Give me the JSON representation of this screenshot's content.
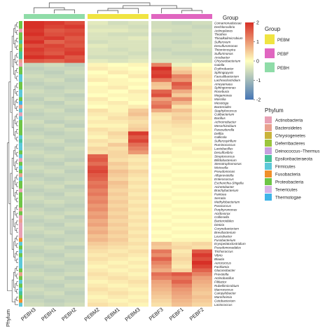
{
  "chart_data": {
    "type": "heatmap",
    "title": "",
    "columns": [
      "PEBH3",
      "PEBH1",
      "PEBH2",
      "PEBM2",
      "PEBM1",
      "PEBM3",
      "PEBF3",
      "PEBF1",
      "PEBF2"
    ],
    "column_groups": [
      "PEBH",
      "PEBH",
      "PEBH",
      "PEBM",
      "PEBM",
      "PEBM",
      "PEBF",
      "PEBF",
      "PEBF"
    ],
    "rows": [
      "Comamonadaceae",
      "Dechlorovibrio",
      "Actinoplanes",
      "Thiothrix",
      "Thioalkalimicrobium",
      "Sulfurovum",
      "Desulfuromonas",
      "Thiomicrospira",
      "Sulfurimonas",
      "Arcobacter",
      "Chryseobacterium",
      "Gaiella",
      "Erythrobacter",
      "Sphingopyxis",
      "Faecalibacterium",
      "Lachnoclostridium",
      "Ameyamaea",
      "Sphingomonas",
      "Roseburia",
      "Megamonas",
      "Massilia",
      "Mesotoga",
      "Bacteroides",
      "Staphylococcus",
      "Cutibacterium",
      "Bacillus",
      "Achromobacter",
      "Mesorhizobium",
      "Parasutterella",
      "Delftia",
      "Gallicola",
      "Sulfurospirillum",
      "Ruminococcus",
      "Lactobacillus",
      "Desulfovibrio",
      "Streptococcus",
      "Bifidobacterium",
      "Stenotrophomonas",
      "Weissella",
      "Pseudomonas",
      "Alloprevotella",
      "Enterococcus",
      "Escherichia-Shigella",
      "Acinetobacter",
      "Brachybacterium",
      "Pantoea",
      "Serratia",
      "Methylobacterium",
      "Paracoccus",
      "Porphyromonas",
      "Acidovorax",
      "Collinsella",
      "Bacteroidales",
      "Dietzia",
      "Corynebacterium",
      "Brevibacterium",
      "Leucobacter",
      "Fusobacterium",
      "Erysipelatoclostridium",
      "Pseudomonadales",
      "Trichococcus",
      "Vibrio",
      "Blautia",
      "Aerococcus",
      "Facklamia",
      "Gluconobacter",
      "Prevotella",
      "Actinobacillus",
      "Filifactor",
      "Rubellimicrobium",
      "Macrococcus",
      "Campylobacter",
      "Mannheimia",
      "Cetobacterium",
      "Lactococcus"
    ],
    "values": [
      [
        2.1,
        1.9,
        1.7,
        -0.3,
        -0.5,
        -0.4,
        -0.5,
        -0.6,
        -0.5
      ],
      [
        2.0,
        1.8,
        1.9,
        -0.4,
        -0.4,
        -0.5,
        -0.5,
        -0.5,
        -0.6
      ],
      [
        1.9,
        1.6,
        1.7,
        -0.3,
        -0.3,
        -0.4,
        -0.4,
        -0.5,
        -0.5
      ],
      [
        2.2,
        1.7,
        1.8,
        -0.4,
        -0.5,
        -0.5,
        -0.6,
        -0.6,
        -0.5
      ],
      [
        1.8,
        1.9,
        1.6,
        -0.4,
        -0.4,
        -0.3,
        -0.5,
        -0.5,
        -0.5
      ],
      [
        2.0,
        1.5,
        1.7,
        -0.5,
        -0.4,
        -0.4,
        -0.5,
        -0.6,
        -0.5
      ],
      [
        1.7,
        1.8,
        1.6,
        -0.3,
        -0.4,
        -0.4,
        -0.5,
        -0.5,
        -0.4
      ],
      [
        1.9,
        1.7,
        1.8,
        -0.4,
        -0.5,
        -0.4,
        -0.6,
        -0.5,
        -0.5
      ],
      [
        1.8,
        1.6,
        1.9,
        -0.4,
        -0.4,
        -0.5,
        -0.5,
        -0.6,
        -0.6
      ],
      [
        2.1,
        1.9,
        1.6,
        -0.5,
        -0.5,
        -0.4,
        -0.5,
        -0.5,
        -0.5
      ],
      [
        1.6,
        1.5,
        1.7,
        -0.3,
        -0.4,
        -0.3,
        -0.4,
        -0.4,
        -0.5
      ],
      [
        -0.6,
        -0.5,
        -0.7,
        0.1,
        0.0,
        0.1,
        1.2,
        -0.2,
        0.0
      ],
      [
        -0.7,
        -0.6,
        -0.6,
        0.2,
        0.1,
        0.0,
        2.1,
        0.4,
        0.1
      ],
      [
        -0.6,
        -0.7,
        -0.5,
        0.0,
        0.2,
        0.1,
        1.8,
        0.6,
        0.2
      ],
      [
        -0.5,
        -0.6,
        -0.6,
        0.1,
        0.0,
        0.2,
        1.9,
        1.2,
        0.3
      ],
      [
        -0.6,
        -0.5,
        -0.7,
        0.2,
        0.1,
        0.0,
        1.3,
        1.0,
        0.2
      ],
      [
        -0.7,
        -0.6,
        -0.6,
        0.0,
        0.1,
        0.1,
        0.6,
        1.6,
        0.1
      ],
      [
        -0.6,
        -0.7,
        -0.6,
        0.1,
        0.2,
        0.0,
        0.5,
        1.4,
        0.3
      ],
      [
        -0.5,
        -0.6,
        -0.5,
        0.1,
        0.0,
        0.2,
        1.5,
        0.8,
        0.2
      ],
      [
        -0.6,
        -0.6,
        -0.7,
        0.0,
        0.1,
        0.1,
        1.7,
        0.5,
        0.1
      ],
      [
        -0.7,
        -0.5,
        -0.6,
        0.2,
        0.0,
        0.1,
        0.9,
        1.1,
        0.2
      ],
      [
        -0.6,
        -0.7,
        -0.5,
        0.1,
        0.2,
        0.0,
        1.2,
        0.7,
        0.0
      ],
      [
        -0.5,
        -0.6,
        -0.6,
        0.0,
        0.1,
        0.2,
        1.4,
        0.3,
        0.1
      ],
      [
        -0.6,
        -0.5,
        -0.7,
        0.3,
        0.1,
        0.5,
        0.8,
        0.6,
        0.2
      ],
      [
        -0.7,
        -0.6,
        -0.6,
        0.2,
        0.2,
        0.6,
        0.3,
        0.4,
        0.1
      ],
      [
        -0.6,
        -0.6,
        -0.5,
        0.1,
        0.3,
        0.4,
        0.2,
        0.5,
        0.2
      ],
      [
        -0.5,
        -0.7,
        -0.6,
        0.2,
        0.2,
        0.3,
        0.3,
        0.4,
        0.0
      ],
      [
        -0.6,
        -0.5,
        -0.7,
        0.1,
        0.1,
        0.4,
        0.2,
        0.3,
        0.1
      ],
      [
        -0.7,
        -0.6,
        -0.5,
        0.3,
        0.2,
        0.5,
        0.2,
        0.2,
        0.1
      ],
      [
        -0.6,
        -0.7,
        -0.6,
        0.2,
        0.4,
        1.9,
        0.1,
        0.2,
        0.0
      ],
      [
        -0.5,
        -0.6,
        -0.6,
        0.1,
        0.3,
        1.6,
        0.2,
        0.1,
        0.1
      ],
      [
        -0.6,
        -0.5,
        -0.7,
        0.3,
        0.2,
        1.8,
        0.1,
        0.2,
        0.0
      ],
      [
        -0.7,
        -0.6,
        -0.6,
        0.2,
        0.5,
        1.4,
        0.0,
        0.1,
        0.1
      ],
      [
        -0.6,
        -0.7,
        -0.5,
        0.4,
        0.3,
        1.2,
        0.1,
        0.0,
        0.2
      ],
      [
        -0.5,
        -0.6,
        -0.6,
        0.3,
        0.4,
        1.0,
        0.2,
        0.1,
        0.0
      ],
      [
        -0.6,
        -0.5,
        -0.6,
        1.5,
        0.4,
        0.3,
        0.0,
        0.1,
        0.1
      ],
      [
        -0.7,
        -0.6,
        -0.7,
        1.6,
        0.3,
        0.2,
        0.1,
        0.0,
        0.0
      ],
      [
        -0.6,
        -0.7,
        -0.5,
        1.4,
        0.5,
        0.3,
        0.0,
        0.1,
        0.1
      ],
      [
        -0.5,
        -0.6,
        -0.6,
        1.7,
        0.4,
        0.2,
        0.1,
        0.0,
        0.0
      ],
      [
        -0.6,
        -0.5,
        -0.7,
        1.8,
        0.6,
        0.4,
        0.0,
        0.1,
        0.1
      ],
      [
        -0.7,
        -0.6,
        -0.6,
        1.6,
        0.5,
        0.3,
        0.1,
        0.0,
        0.0
      ],
      [
        -0.6,
        -0.7,
        -0.6,
        1.5,
        0.4,
        0.2,
        0.0,
        0.1,
        0.1
      ],
      [
        -0.5,
        -0.6,
        -0.5,
        1.3,
        0.6,
        0.3,
        0.1,
        0.0,
        0.0
      ],
      [
        -0.6,
        -0.5,
        -0.7,
        1.4,
        0.5,
        0.2,
        0.0,
        0.1,
        0.1
      ],
      [
        -0.7,
        -0.6,
        -0.6,
        1.2,
        0.4,
        0.3,
        0.1,
        0.0,
        0.0
      ],
      [
        -0.6,
        -0.7,
        -0.5,
        1.3,
        0.5,
        0.2,
        0.0,
        0.1,
        0.1
      ],
      [
        -0.5,
        -0.6,
        -0.6,
        1.1,
        0.4,
        0.3,
        0.1,
        0.0,
        0.0
      ],
      [
        -0.6,
        -0.5,
        -0.6,
        1.2,
        0.5,
        0.2,
        0.0,
        0.1,
        0.1
      ],
      [
        -0.7,
        -0.6,
        -0.7,
        1.0,
        0.4,
        0.3,
        0.1,
        0.0,
        0.0
      ],
      [
        -0.6,
        -0.7,
        -0.6,
        1.1,
        0.5,
        0.2,
        0.0,
        0.1,
        0.1
      ],
      [
        -0.5,
        -0.6,
        -0.5,
        0.9,
        0.4,
        0.3,
        0.1,
        0.0,
        0.0
      ],
      [
        -0.6,
        -0.5,
        -0.7,
        1.0,
        0.5,
        0.2,
        0.0,
        0.1,
        0.1
      ],
      [
        -0.7,
        -0.6,
        -0.6,
        0.8,
        0.4,
        0.3,
        0.1,
        0.0,
        0.0
      ],
      [
        -0.6,
        -0.7,
        -0.5,
        0.9,
        0.5,
        0.2,
        0.0,
        0.1,
        0.1
      ],
      [
        -0.5,
        -0.6,
        -0.6,
        0.7,
        0.4,
        0.3,
        0.1,
        0.0,
        0.0
      ],
      [
        -0.6,
        -0.5,
        -0.7,
        0.8,
        0.5,
        0.2,
        0.0,
        0.1,
        0.1
      ],
      [
        -0.7,
        -0.6,
        -0.6,
        0.6,
        0.4,
        0.3,
        0.1,
        0.0,
        0.0
      ],
      [
        -0.6,
        -0.7,
        -0.6,
        0.7,
        0.5,
        0.2,
        0.0,
        0.1,
        0.1
      ],
      [
        -0.5,
        -0.6,
        -0.5,
        0.5,
        0.4,
        0.3,
        0.6,
        0.3,
        0.4
      ],
      [
        -0.6,
        -0.5,
        -0.7,
        0.4,
        0.3,
        0.2,
        0.5,
        0.4,
        0.3
      ],
      [
        -0.7,
        -0.6,
        -0.6,
        0.3,
        0.2,
        0.3,
        1.3,
        0.2,
        1.6
      ],
      [
        -0.6,
        -0.7,
        -0.5,
        0.2,
        0.3,
        0.2,
        1.1,
        0.3,
        1.9
      ],
      [
        -0.5,
        -0.6,
        -0.6,
        0.3,
        0.2,
        0.1,
        1.5,
        0.4,
        1.7
      ],
      [
        -0.6,
        -0.5,
        -0.7,
        0.2,
        0.1,
        0.2,
        1.2,
        0.3,
        2.2
      ],
      [
        -0.7,
        -0.6,
        -0.6,
        0.1,
        0.2,
        0.1,
        1.0,
        0.2,
        1.8
      ],
      [
        -0.6,
        -0.7,
        -0.6,
        0.2,
        0.1,
        0.2,
        0.8,
        0.4,
        1.5
      ],
      [
        -0.5,
        -0.6,
        -0.5,
        0.3,
        0.2,
        0.1,
        1.4,
        1.6,
        1.2
      ],
      [
        -0.6,
        -0.5,
        -0.7,
        0.2,
        0.3,
        0.2,
        1.2,
        1.3,
        0.9
      ],
      [
        -0.7,
        -0.6,
        -0.6,
        0.1,
        0.2,
        0.3,
        0.9,
        1.5,
        0.8
      ],
      [
        -0.6,
        -0.7,
        -0.5,
        0.2,
        0.1,
        0.2,
        0.8,
        1.2,
        0.7
      ],
      [
        -0.5,
        -0.6,
        -0.6,
        0.3,
        0.2,
        0.1,
        0.7,
        1.0,
        0.6
      ],
      [
        -0.6,
        -0.5,
        -0.7,
        0.2,
        0.3,
        0.2,
        0.6,
        0.9,
        0.5
      ],
      [
        -0.7,
        -0.6,
        -0.6,
        0.1,
        0.2,
        0.1,
        0.5,
        0.8,
        0.6
      ],
      [
        -0.6,
        -0.7,
        -0.6,
        0.2,
        0.1,
        0.2,
        0.4,
        0.7,
        0.5
      ],
      [
        -0.5,
        -0.6,
        -0.5,
        0.3,
        0.2,
        0.1,
        0.3,
        0.6,
        0.4
      ]
    ],
    "row_phylum": [
      "Proteobacteria",
      "Proteobacteria",
      "Actinobacteria",
      "Proteobacteria",
      "Proteobacteria",
      "Epsilonbacteraeota",
      "Deferribacteres",
      "Proteobacteria",
      "Epsilonbacteraeota",
      "Epsilonbacteraeota",
      "Bacteroidetes",
      "Actinobacteria",
      "Proteobacteria",
      "Proteobacteria",
      "Firmicutes",
      "Firmicutes",
      "Proteobacteria",
      "Proteobacteria",
      "Firmicutes",
      "Firmicutes",
      "Proteobacteria",
      "Thermotogae",
      "Bacteroidetes",
      "Firmicutes",
      "Actinobacteria",
      "Firmicutes",
      "Proteobacteria",
      "Proteobacteria",
      "Proteobacteria",
      "Proteobacteria",
      "Firmicutes",
      "Epsilonbacteraeota",
      "Firmicutes",
      "Firmicutes",
      "Proteobacteria",
      "Firmicutes",
      "Actinobacteria",
      "Proteobacteria",
      "Firmicutes",
      "Proteobacteria",
      "Bacteroidetes",
      "Firmicutes",
      "Proteobacteria",
      "Proteobacteria",
      "Actinobacteria",
      "Proteobacteria",
      "Proteobacteria",
      "Proteobacteria",
      "Proteobacteria",
      "Bacteroidetes",
      "Proteobacteria",
      "Actinobacteria",
      "Bacteroidetes",
      "Actinobacteria",
      "Actinobacteria",
      "Actinobacteria",
      "Actinobacteria",
      "Fusobacteria",
      "Firmicutes",
      "Proteobacteria",
      "Firmicutes",
      "Proteobacteria",
      "Firmicutes",
      "Firmicutes",
      "Firmicutes",
      "Proteobacteria",
      "Bacteroidetes",
      "Proteobacteria",
      "Firmicutes",
      "Proteobacteria",
      "Firmicutes",
      "Epsilonbacteraeota",
      "Proteobacteria",
      "Fusobacteria",
      "Firmicutes"
    ],
    "color_scale": {
      "min": -2,
      "max": 2,
      "ticks": [
        2,
        1,
        0,
        -1,
        -2
      ],
      "low": "#4575b4",
      "mid": "#ffffbf",
      "high": "#d73027"
    },
    "legend_group": {
      "title": "Group",
      "items": [
        {
          "label": "PEBM",
          "color": "#f0e442"
        },
        {
          "label": "PEBF",
          "color": "#e066c0"
        },
        {
          "label": "PEBH",
          "color": "#8fdca8"
        }
      ]
    },
    "legend_phylum": {
      "title": "Phylum",
      "items": [
        {
          "label": "Actinobacteria",
          "color": "#e8a0b4"
        },
        {
          "label": "Bacteroidetes",
          "color": "#e9a08e"
        },
        {
          "label": "Chrysiogenetes",
          "color": "#c9b33a"
        },
        {
          "label": "Deferribacteres",
          "color": "#9bc53d"
        },
        {
          "label": "Deinococcus−Thermus",
          "color": "#c8a0e0"
        },
        {
          "label": "Epsilonbacteraeota",
          "color": "#46c29a"
        },
        {
          "label": "Firmicutes",
          "color": "#5cc8d8"
        },
        {
          "label": "Fusobacteria",
          "color": "#f0902a"
        },
        {
          "label": "Proteobacteria",
          "color": "#6ec547"
        },
        {
          "label": "Tenericutes",
          "color": "#d8b2e6"
        },
        {
          "label": "Thermotogae",
          "color": "#3fb4e8"
        }
      ]
    },
    "annotation_labels": {
      "top": "Group",
      "side": "Phylum"
    }
  }
}
